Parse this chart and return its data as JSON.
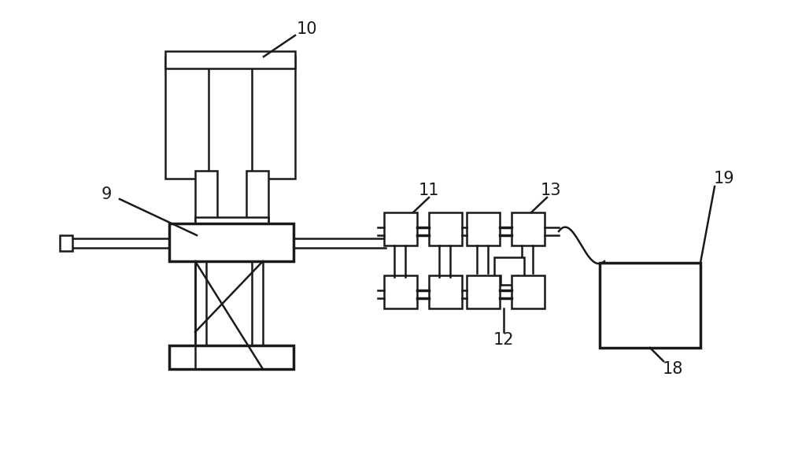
{
  "bg_color": "#ffffff",
  "line_color": "#1a1a1a",
  "lw": 1.8,
  "lw2": 2.5,
  "fs": 15,
  "figw": 10.0,
  "figh": 5.77,
  "dpi": 100
}
